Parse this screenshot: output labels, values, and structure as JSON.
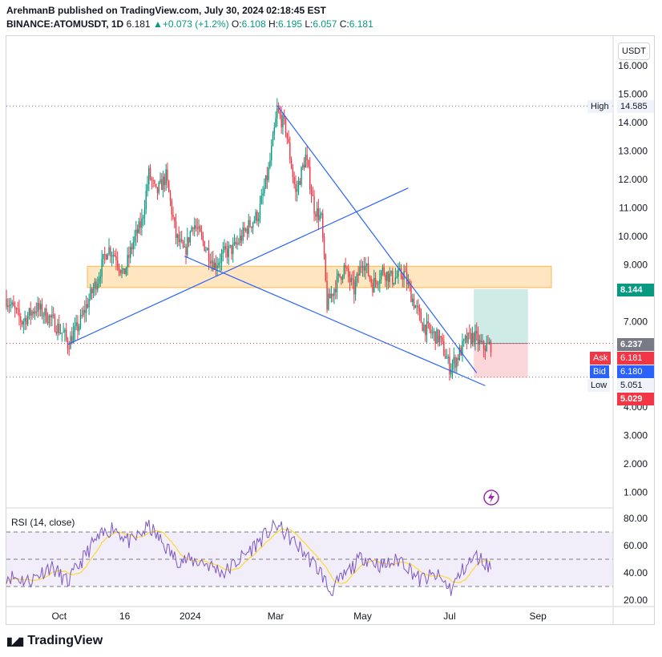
{
  "header": {
    "publisher": "ArehmanB published on TradingView.com, July 30, 2024 02:18:45 EST",
    "symbol": "BINANCE:ATOMUSDT, 1D",
    "last": "6.181",
    "change": "+0.073 (+1.2%)",
    "open_label": "O:",
    "open": "6.108",
    "high_label": "H:",
    "high": "6.195",
    "low_label": "L:",
    "low": "6.057",
    "close_label": "C:",
    "close": "6.181"
  },
  "currency": "USDT",
  "rsi_title": "RSI (14, close)",
  "footer_brand": "TradingView",
  "price_tags": {
    "high_label": "High",
    "high_value": "14.585",
    "target": "8.144",
    "entry": "6.237",
    "ask_label": "Ask",
    "ask_value": "6.181",
    "bid_label": "Bid",
    "bid_value": "6.180",
    "low_label": "Low",
    "low_value": "5.051",
    "stop": "5.029"
  },
  "colors": {
    "up": "#089981",
    "down": "#f23645",
    "line": "#2962ff",
    "zone": "#ffb74d",
    "rsi": "#7e57c2",
    "rsi_ma": "#fdd835"
  },
  "chart_data": {
    "type": "candlestick",
    "y_ticks": [
      "16.000",
      "15.000",
      "14.000",
      "13.000",
      "12.000",
      "11.000",
      "10.000",
      "9.000",
      "7.000",
      "4.000",
      "3.000",
      "2.000",
      "1.000"
    ],
    "ylim": [
      0.5,
      16.5
    ],
    "x_ticks": [
      "Oct",
      "16",
      "2024",
      "Mar",
      "May",
      "Jul",
      "Sep"
    ],
    "rsi_ticks": [
      "80.00",
      "60.00",
      "40.00",
      "20.00"
    ],
    "rsi_ylim": [
      16,
      84
    ],
    "rsi_bands": [
      30,
      50,
      70
    ],
    "horizontal_levels": [
      14.585,
      6.237,
      5.051
    ],
    "resistance_zone": [
      8.2,
      8.95
    ],
    "trendlines": [
      {
        "from": [
          "2023-10-07",
          6.2
        ],
        "to": [
          "2024-06-02",
          11.7
        ]
      },
      {
        "from": [
          "2023-12-28",
          9.3
        ],
        "to": [
          "2024-07-26",
          4.75
        ]
      },
      {
        "from": [
          "2024-03-02",
          14.6
        ],
        "to": [
          "2024-07-20",
          5.2
        ]
      }
    ],
    "long_position": {
      "start": "2024-07-18",
      "end": "2024-08-25",
      "entry": 6.237,
      "target": 8.144,
      "stop": 5.029
    },
    "price_anchors": [
      [
        "2023-08-25",
        7.8
      ],
      [
        "2023-09-05",
        7.0
      ],
      [
        "2023-09-15",
        7.5
      ],
      [
        "2023-09-25",
        7.1
      ],
      [
        "2023-10-05",
        6.5
      ],
      [
        "2023-10-07",
        6.2
      ],
      [
        "2023-10-15",
        6.9
      ],
      [
        "2023-10-22",
        7.8
      ],
      [
        "2023-10-28",
        8.5
      ],
      [
        "2023-11-04",
        9.6
      ],
      [
        "2023-11-10",
        9.3
      ],
      [
        "2023-11-15",
        8.6
      ],
      [
        "2023-11-22",
        9.8
      ],
      [
        "2023-11-28",
        10.5
      ],
      [
        "2023-12-03",
        12.2
      ],
      [
        "2023-12-08",
        11.5
      ],
      [
        "2023-12-15",
        12.1
      ],
      [
        "2023-12-22",
        10.0
      ],
      [
        "2023-12-28",
        9.4
      ],
      [
        "2024-01-03",
        10.5
      ],
      [
        "2024-01-10",
        9.8
      ],
      [
        "2024-01-18",
        9.0
      ],
      [
        "2024-01-25",
        9.4
      ],
      [
        "2024-02-01",
        9.6
      ],
      [
        "2024-02-10",
        10.3
      ],
      [
        "2024-02-18",
        10.8
      ],
      [
        "2024-02-25",
        12.3
      ],
      [
        "2024-03-02",
        14.4
      ],
      [
        "2024-03-08",
        13.8
      ],
      [
        "2024-03-15",
        11.5
      ],
      [
        "2024-03-22",
        12.8
      ],
      [
        "2024-03-28",
        11.0
      ],
      [
        "2024-04-02",
        10.6
      ],
      [
        "2024-04-06",
        7.6
      ],
      [
        "2024-04-12",
        8.3
      ],
      [
        "2024-04-18",
        8.9
      ],
      [
        "2024-04-25",
        8.1
      ],
      [
        "2024-05-01",
        9.2
      ],
      [
        "2024-05-08",
        8.3
      ],
      [
        "2024-05-15",
        8.8
      ],
      [
        "2024-05-22",
        8.5
      ],
      [
        "2024-05-30",
        8.7
      ],
      [
        "2024-06-05",
        7.8
      ],
      [
        "2024-06-12",
        6.9
      ],
      [
        "2024-06-18",
        6.6
      ],
      [
        "2024-06-24",
        6.4
      ],
      [
        "2024-07-01",
        5.4
      ],
      [
        "2024-07-06",
        5.7
      ],
      [
        "2024-07-12",
        6.3
      ],
      [
        "2024-07-18",
        6.5
      ],
      [
        "2024-07-24",
        6.1
      ],
      [
        "2024-07-30",
        6.181
      ]
    ],
    "rsi_anchors": [
      [
        "2023-08-25",
        38
      ],
      [
        "2023-09-10",
        34
      ],
      [
        "2023-09-25",
        45
      ],
      [
        "2023-10-07",
        33
      ],
      [
        "2023-10-25",
        62
      ],
      [
        "2023-11-08",
        74
      ],
      [
        "2023-11-20",
        62
      ],
      [
        "2023-12-03",
        74
      ],
      [
        "2023-12-22",
        50
      ],
      [
        "2024-01-10",
        48
      ],
      [
        "2024-01-25",
        40
      ],
      [
        "2024-02-10",
        55
      ],
      [
        "2024-02-25",
        70
      ],
      [
        "2024-03-02",
        75
      ],
      [
        "2024-03-20",
        56
      ],
      [
        "2024-04-02",
        40
      ],
      [
        "2024-04-08",
        26
      ],
      [
        "2024-04-20",
        40
      ],
      [
        "2024-05-01",
        52
      ],
      [
        "2024-05-15",
        45
      ],
      [
        "2024-05-28",
        50
      ],
      [
        "2024-06-10",
        35
      ],
      [
        "2024-06-22",
        38
      ],
      [
        "2024-07-02",
        28
      ],
      [
        "2024-07-12",
        45
      ],
      [
        "2024-07-20",
        52
      ],
      [
        "2024-07-30",
        44
      ]
    ]
  }
}
